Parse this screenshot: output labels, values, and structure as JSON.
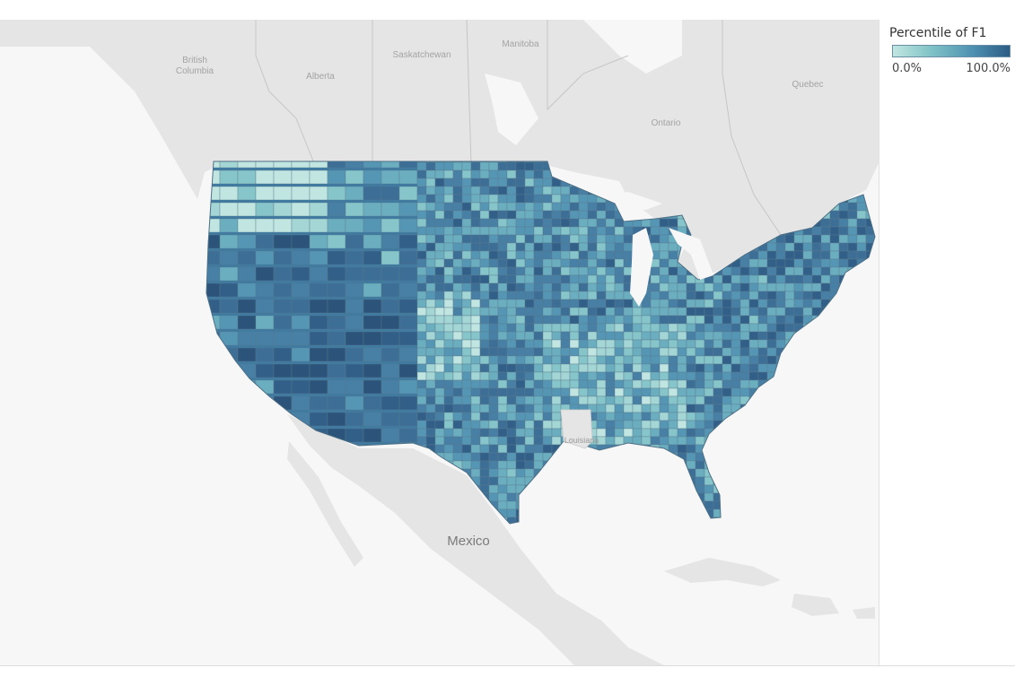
{
  "legend": {
    "title": "Percentile of F1",
    "min_label": "0.0%",
    "max_label": "100.0%",
    "color_low": "#c1e6e1",
    "color_high": "#2c5c84"
  },
  "basemap_labels": {
    "british_columbia_line1": "British",
    "british_columbia_line2": "Columbia",
    "alberta": "Alberta",
    "saskatchewan": "Saskatchewan",
    "manitoba": "Manitoba",
    "ontario": "Ontario",
    "quebec": "Quebec",
    "mexico": "Mexico",
    "louisiana": "Louisiana"
  },
  "colors": {
    "land": "#e5e5e5",
    "water": "#f7f7f7",
    "county_border": "#5a7a8e"
  }
}
